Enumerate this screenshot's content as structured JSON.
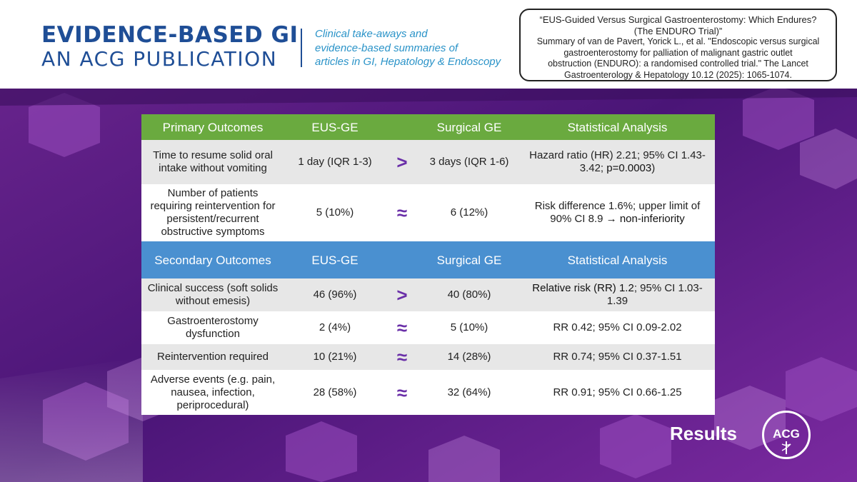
{
  "header": {
    "brand_line1": "EVIDENCE-BASED GI",
    "brand_line2": "AN ACG PUBLICATION",
    "tagline_lines": [
      "Clinical take-aways and",
      "evidence-based summaries of",
      "articles in GI, Hepatology & Endoscopy"
    ],
    "citation": {
      "title_line1": "“EUS-Guided Versus Surgical Gastroenterostomy: Which Endures?",
      "title_line2": "(The ENDURO Trial)”",
      "body_lines": [
        "Summary of van de Pavert, Yorick L., et al. \"Endoscopic versus surgical",
        "gastroenterostomy for palliation of malignant gastric outlet",
        "obstruction (ENDURO): a randomised controlled trial.\" The Lancet",
        "Gastroenterology & Hepatology 10.12 (2025): 1065-1074."
      ]
    }
  },
  "table": {
    "primary_header": {
      "outcome": "Primary Outcomes",
      "eus": "EUS-GE",
      "surgical": "Surgical GE",
      "stats": "Statistical Analysis"
    },
    "primary_rows": [
      {
        "outcome": "Time to resume solid oral intake without vomiting",
        "eus": "1 day (IQR 1-3)",
        "symbol": ">",
        "surgical": "3 days (IQR 1-6)",
        "stats_a": "Hazard ratio (HR) 2.21; 95% CI 1.43-3.42; ",
        "stats_b": "p=0.0003",
        "stats_c": ")"
      },
      {
        "outcome": "Number of patients requiring reintervention for persistent/recurrent obstructive symptoms",
        "eus": "5 (10%)",
        "symbol": "≈",
        "surgical": "6 (12%)",
        "stats_a": "Risk difference 1.6%; upper limit of 90% CI 8.9 ",
        "stats_b": "→ non-inferiority"
      }
    ],
    "secondary_header": {
      "outcome": "Secondary Outcomes",
      "eus": "EUS-GE",
      "surgical": "Surgical GE",
      "stats": "Statistical Analysis"
    },
    "secondary_rows": [
      {
        "outcome": "Clinical success (soft solids without emesis)",
        "eus": "46 (96%)",
        "symbol": ">",
        "surgical": "40 (80%)",
        "stats_a": "Relative risk (RR) 1.2",
        "stats_b": "; 95% CI 1.03-1.39"
      },
      {
        "outcome": "Gastroenterostomy dysfunction",
        "eus": "2 (4%)",
        "symbol": "≈",
        "surgical": "5 (10%)",
        "stats_a": "RR 0.42; 95% CI 0.09-2.02"
      },
      {
        "outcome": "Reintervention required",
        "eus": "10 (21%)",
        "symbol": "≈",
        "surgical": "14 (28%)",
        "stats_a": "RR 0.74; 95% CI 0.37-1.51"
      },
      {
        "outcome": "Adverse events (e.g. pain, nausea, infection, periprocedural)",
        "eus": "28 (58%)",
        "symbol": "≈",
        "surgical": "32 (64%)",
        "stats_a": "RR 0.91; 95% CI 0.66-1.25"
      }
    ]
  },
  "footer": {
    "section_label": "Results",
    "logo_text": "ACG"
  },
  "colors": {
    "brand_blue": "#1f4e96",
    "tagline_blue": "#2a93c8",
    "primary_header_green": "#6aaa3f",
    "secondary_header_blue": "#4a90d0",
    "symbol_purple": "#6a2fa8",
    "background_purple": "#5a1d86"
  }
}
